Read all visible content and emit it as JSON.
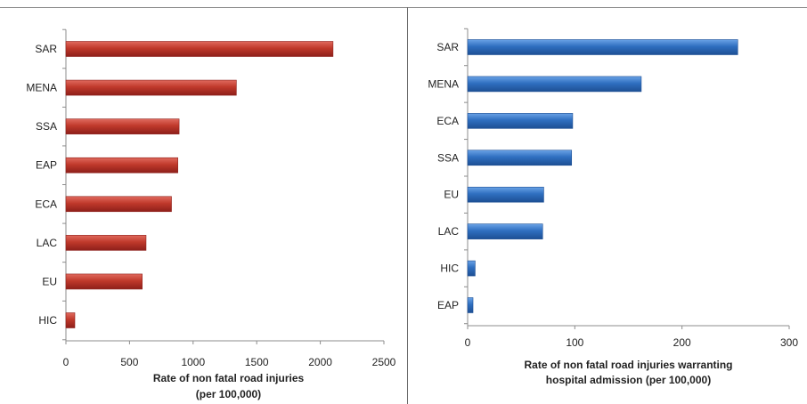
{
  "charts": {
    "chart_data": [
      {
        "type": "bar",
        "orientation": "horizontal",
        "categories": [
          "SAR",
          "MENA",
          "SSA",
          "EAP",
          "ECA",
          "LAC",
          "EU",
          "HIC"
        ],
        "values": [
          2100,
          1340,
          890,
          880,
          830,
          630,
          600,
          70
        ],
        "xlabel_lines": [
          "Rate of non fatal road injuries",
          "(per 100,000)"
        ],
        "xlim": [
          0,
          2500
        ],
        "xticks": [
          "0",
          "500",
          "1000",
          "1500",
          "2000",
          "2500"
        ],
        "grid": false,
        "bar_color": "#c0392b",
        "bar_color_dark": "#8e1f1a",
        "bar_color_light": "#e06a5e"
      },
      {
        "type": "bar",
        "orientation": "horizontal",
        "categories": [
          "SAR",
          "MENA",
          "ECA",
          "SSA",
          "EU",
          "LAC",
          "HIC",
          "EAP"
        ],
        "values": [
          252,
          162,
          98,
          97,
          71,
          70,
          7,
          5
        ],
        "xlabel_lines": [
          "Rate of non fatal road injuries warranting",
          "hospital admission  (per 100,000)"
        ],
        "xlim": [
          0,
          300
        ],
        "xticks": [
          "0",
          "100",
          "200",
          "300"
        ],
        "grid": false,
        "bar_color": "#2f6fc0",
        "bar_color_dark": "#1d4f94",
        "bar_color_light": "#6aa2e6"
      }
    ]
  }
}
